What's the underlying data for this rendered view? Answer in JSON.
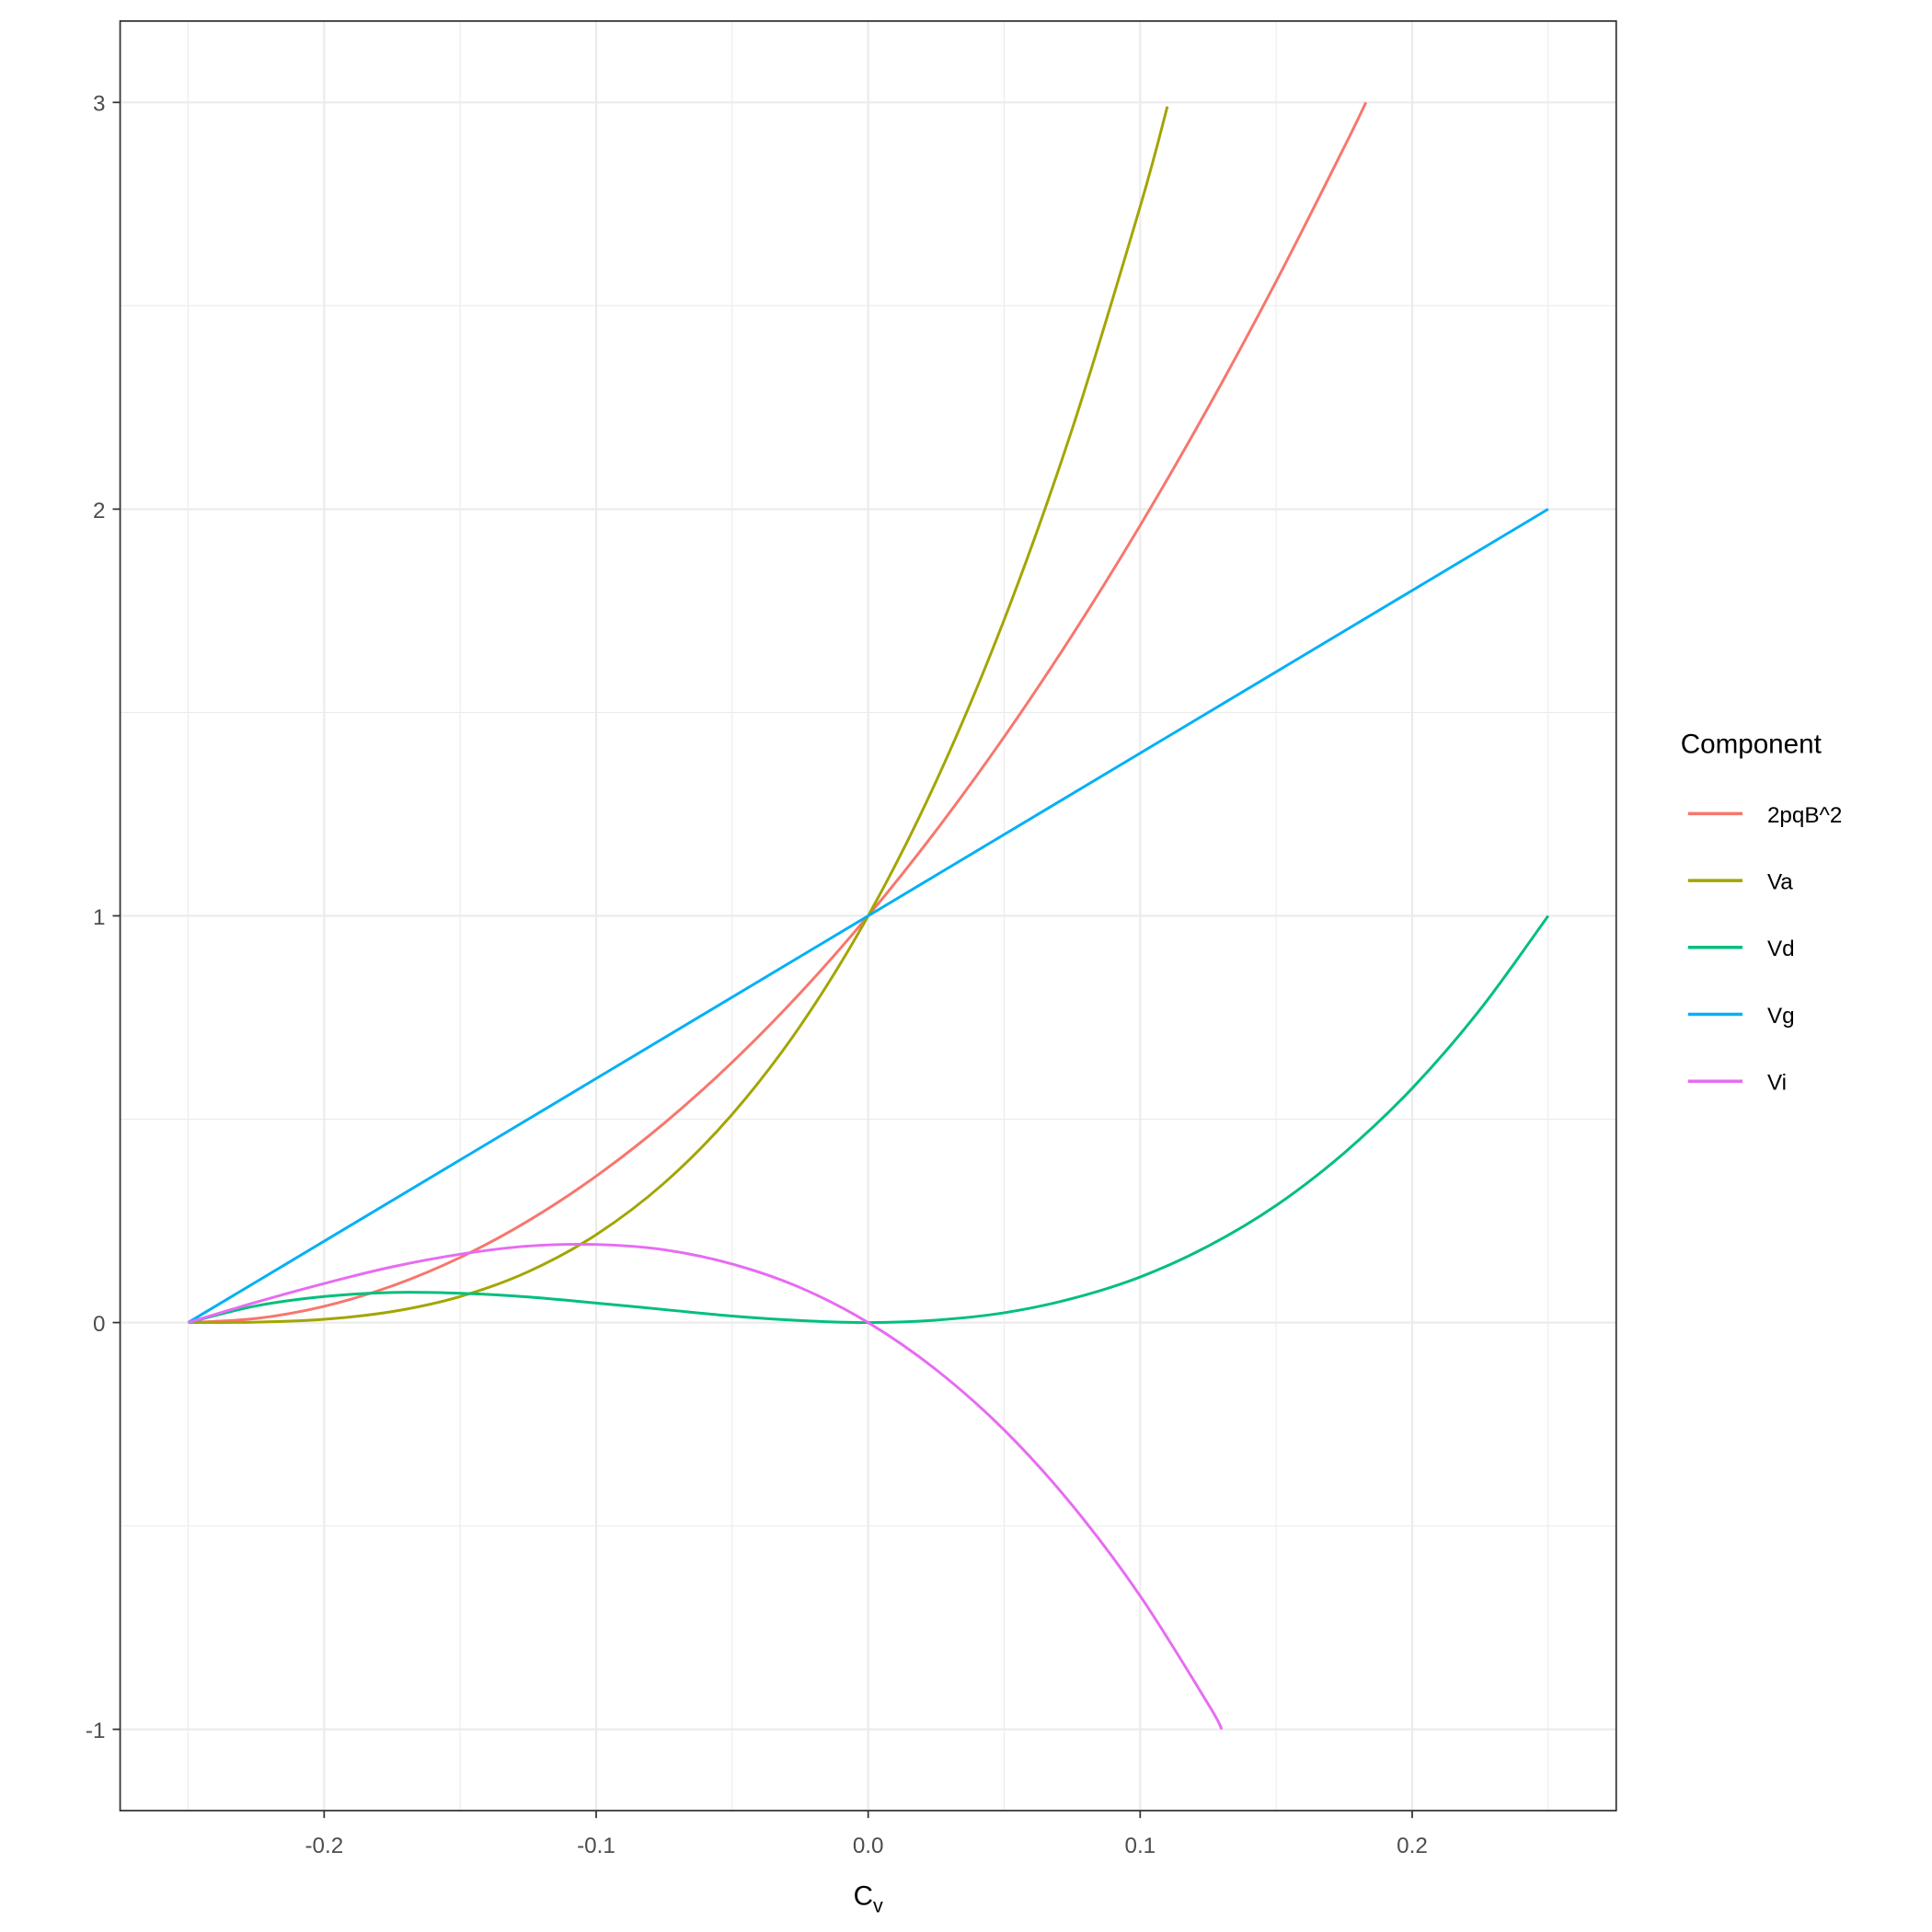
{
  "chart_data": {
    "type": "line",
    "title": "",
    "xlabel": "C",
    "xlabel_subscript": "v",
    "ylabel": "",
    "xlim": [
      -0.275,
      0.275
    ],
    "ylim": [
      -1.2,
      3.2
    ],
    "x_ticks": [
      -0.2,
      -0.1,
      0.0,
      0.1,
      0.2
    ],
    "x_tick_labels": [
      "-0.2",
      "-0.1",
      "0.0",
      "0.1",
      "0.2"
    ],
    "y_ticks": [
      -1,
      0,
      1,
      2,
      3
    ],
    "y_tick_labels": [
      "-1",
      "0",
      "1",
      "2",
      "3"
    ],
    "grid": true,
    "legend": {
      "title": "Component",
      "position": "right"
    },
    "series": [
      {
        "name": "2pqB^2",
        "color": "#F8766D",
        "x": [
          -0.25,
          -0.225,
          -0.2,
          -0.175,
          -0.15,
          -0.125,
          -0.1,
          -0.075,
          -0.05,
          -0.025,
          0,
          0.025,
          0.05,
          0.075,
          0.1,
          0.125,
          0.15,
          0.175,
          0.183
        ],
        "y": [
          0,
          0.01,
          0.04,
          0.09,
          0.16,
          0.25,
          0.36,
          0.49,
          0.64,
          0.81,
          1,
          1.21,
          1.44,
          1.69,
          1.96,
          2.25,
          2.56,
          2.89,
          3.0
        ]
      },
      {
        "name": "Va",
        "color": "#A3A500",
        "x": [
          -0.25,
          -0.225,
          -0.2,
          -0.175,
          -0.15,
          -0.125,
          -0.1,
          -0.075,
          -0.05,
          -0.025,
          0,
          0.025,
          0.05,
          0.075,
          0.1,
          0.11
        ],
        "y": [
          0,
          0.001,
          0.008,
          0.027,
          0.064,
          0.125,
          0.216,
          0.343,
          0.512,
          0.729,
          1,
          1.331,
          1.728,
          2.197,
          2.744,
          2.99
        ]
      },
      {
        "name": "Vd",
        "color": "#00BF7D",
        "x": [
          -0.25,
          -0.225,
          -0.2,
          -0.175,
          -0.15,
          -0.125,
          -0.1,
          -0.075,
          -0.05,
          -0.025,
          0,
          0.025,
          0.05,
          0.075,
          0.1,
          0.125,
          0.15,
          0.175,
          0.2,
          0.225,
          0.25
        ],
        "y": [
          0,
          0.041,
          0.064,
          0.074,
          0.072,
          0.063,
          0.048,
          0.032,
          0.016,
          0.005,
          0,
          0.006,
          0.024,
          0.059,
          0.112,
          0.188,
          0.288,
          0.417,
          0.576,
          0.77,
          1.0
        ]
      },
      {
        "name": "Vg",
        "color": "#00B0F6",
        "x": [
          -0.25,
          0.25
        ],
        "y": [
          0,
          2
        ]
      },
      {
        "name": "Vi",
        "color": "#E76BF3",
        "x": [
          -0.25,
          -0.225,
          -0.2,
          -0.175,
          -0.15,
          -0.125,
          -0.1,
          -0.075,
          -0.05,
          -0.025,
          0,
          0.025,
          0.05,
          0.075,
          0.1,
          0.125,
          0.13
        ],
        "y": [
          0,
          0.05,
          0.096,
          0.137,
          0.168,
          0.188,
          0.192,
          0.179,
          0.144,
          0.086,
          0,
          -0.116,
          -0.264,
          -0.449,
          -0.672,
          -0.938,
          -1.0
        ]
      }
    ]
  }
}
